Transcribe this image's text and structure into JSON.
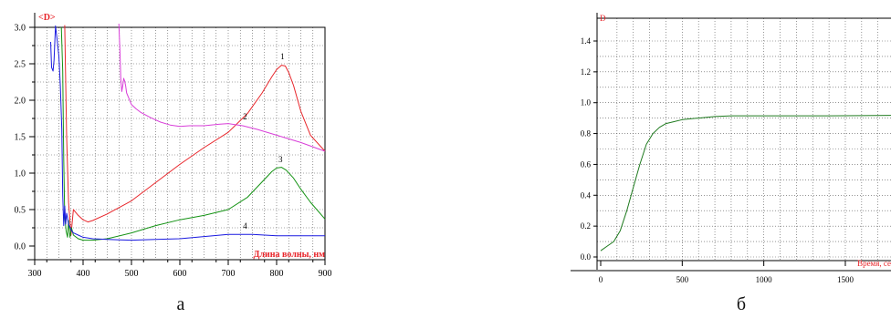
{
  "colors": {
    "red": "#e8262b",
    "magenta": "#d93fd9",
    "green": "#139213",
    "blue": "#1a1ae0",
    "darkgreen": "#1e7a1e",
    "grid": "#555555"
  },
  "chart_data": [
    {
      "type": "line",
      "panel_caption": "а",
      "ylabel": "<D>",
      "xlabel": "Длина волны, нм",
      "xlim": [
        300,
        900
      ],
      "ylim": [
        0,
        3.0
      ],
      "xticks": [
        "300",
        "400",
        "500",
        "600",
        "700",
        "800",
        "900"
      ],
      "yticks": [
        "0.0",
        "0.5",
        "1.0",
        "1.5",
        "2.0",
        "2.5",
        "3.0"
      ],
      "grid": true,
      "series": [
        {
          "name": "1",
          "color_key": "red",
          "label_at": [
            812,
            2.56
          ],
          "x": [
            362,
            366,
            370,
            375,
            380,
            385,
            390,
            400,
            410,
            420,
            450,
            500,
            550,
            600,
            650,
            700,
            740,
            770,
            790,
            800,
            810,
            818,
            825,
            835,
            850,
            870,
            900
          ],
          "y": [
            3.03,
            1.5,
            0.6,
            0.15,
            0.5,
            0.46,
            0.42,
            0.36,
            0.33,
            0.35,
            0.44,
            0.62,
            0.87,
            1.12,
            1.35,
            1.56,
            1.82,
            2.1,
            2.32,
            2.42,
            2.48,
            2.47,
            2.38,
            2.2,
            1.85,
            1.52,
            1.3
          ]
        },
        {
          "name": "2",
          "color_key": "magenta",
          "label_at": [
            735,
            1.74
          ],
          "x": [
            474,
            476,
            478,
            480,
            482,
            484,
            486,
            488,
            490,
            495,
            500,
            510,
            520,
            540,
            560,
            580,
            600,
            620,
            650,
            680,
            700,
            730,
            760,
            800,
            850,
            900
          ],
          "y": [
            3.05,
            2.7,
            2.3,
            2.12,
            2.2,
            2.3,
            2.26,
            2.2,
            2.1,
            2.02,
            1.94,
            1.88,
            1.83,
            1.76,
            1.7,
            1.66,
            1.64,
            1.65,
            1.65,
            1.67,
            1.68,
            1.65,
            1.6,
            1.52,
            1.42,
            1.3
          ]
        },
        {
          "name": "3",
          "color_key": "green",
          "label_at": [
            808,
            1.15
          ],
          "x": [
            355,
            358,
            360,
            362,
            365,
            368,
            370,
            373,
            376,
            380,
            390,
            400,
            420,
            450,
            500,
            550,
            600,
            650,
            700,
            740,
            770,
            790,
            800,
            810,
            820,
            835,
            850,
            870,
            900
          ],
          "y": [
            3.0,
            2.4,
            1.2,
            0.4,
            0.2,
            0.12,
            0.35,
            0.12,
            0.25,
            0.15,
            0.1,
            0.08,
            0.08,
            0.1,
            0.18,
            0.28,
            0.36,
            0.42,
            0.5,
            0.67,
            0.88,
            1.02,
            1.07,
            1.08,
            1.04,
            0.93,
            0.78,
            0.6,
            0.37
          ]
        },
        {
          "name": "4",
          "color_key": "blue",
          "label_at": [
            735,
            0.24
          ],
          "x": [
            333,
            335,
            338,
            340,
            343,
            346,
            350,
            353,
            356,
            358,
            360,
            362,
            364,
            366,
            368,
            370,
            375,
            380,
            390,
            400,
            420,
            450,
            500,
            550,
            600,
            650,
            700,
            750,
            800,
            850,
            900
          ],
          "y": [
            2.8,
            2.45,
            2.4,
            2.55,
            3.02,
            2.85,
            2.6,
            2.2,
            1.6,
            0.7,
            0.28,
            0.55,
            0.3,
            0.45,
            0.38,
            0.3,
            0.22,
            0.18,
            0.15,
            0.12,
            0.1,
            0.09,
            0.08,
            0.09,
            0.1,
            0.13,
            0.16,
            0.16,
            0.14,
            0.14,
            0.14
          ]
        }
      ]
    },
    {
      "type": "line",
      "panel_caption": "б",
      "ylabel": "D",
      "xlabel": "Время, се",
      "xlim": [
        0,
        1780
      ],
      "ylim": [
        -0.05,
        1.55
      ],
      "xticks": [
        "0",
        "500",
        "1000",
        "1500"
      ],
      "yticks": [
        "0.0",
        "0.2",
        "0.4",
        "0.6",
        "0.8",
        "1.0",
        "1.2",
        "1.4"
      ],
      "grid": true,
      "series": [
        {
          "color_key": "darkgreen",
          "x": [
            0,
            40,
            80,
            120,
            160,
            200,
            240,
            280,
            320,
            360,
            400,
            450,
            500,
            600,
            700,
            800,
            900,
            1000,
            1200,
            1400,
            1600,
            1780
          ],
          "y": [
            0.04,
            0.07,
            0.1,
            0.17,
            0.3,
            0.45,
            0.6,
            0.73,
            0.8,
            0.84,
            0.865,
            0.877,
            0.89,
            0.9,
            0.91,
            0.915,
            0.915,
            0.915,
            0.915,
            0.915,
            0.916,
            0.918
          ]
        }
      ]
    }
  ]
}
